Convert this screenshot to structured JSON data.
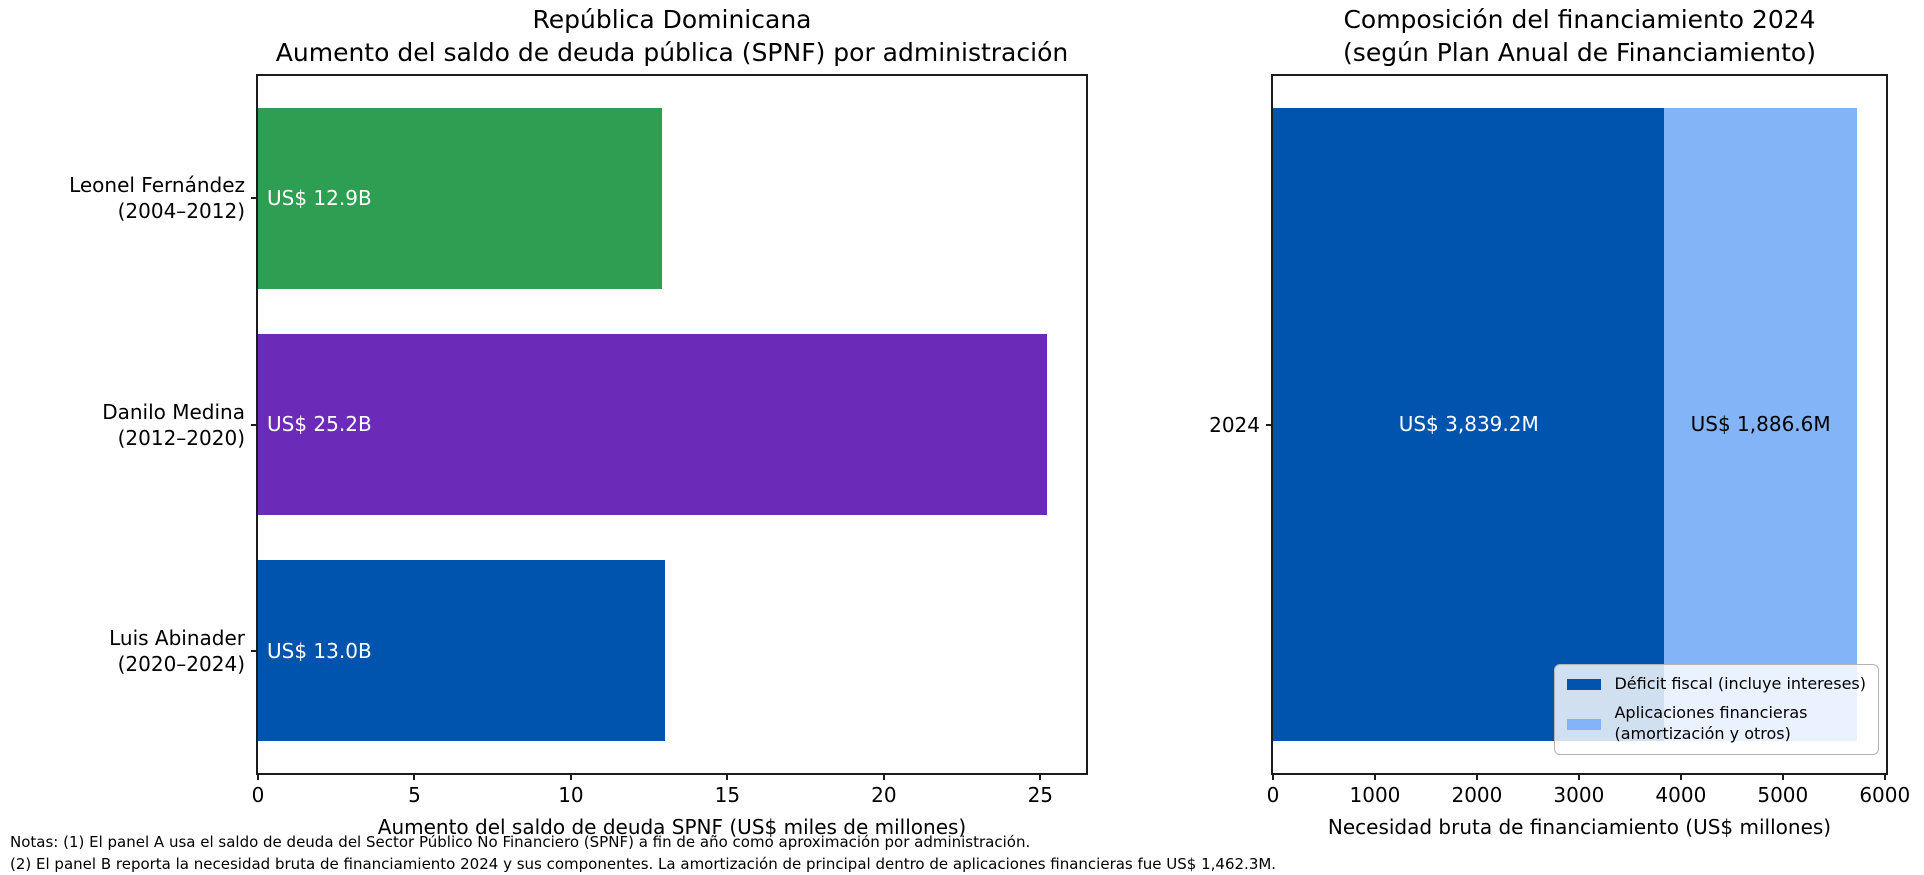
{
  "panel_a": {
    "title_line1": "República Dominicana",
    "title_line2": "Aumento del saldo de deuda pública (SPNF) por administración",
    "xlabel": "Aumento del saldo de deuda SPNF (US$ miles de millones)"
  },
  "panel_b": {
    "title_line1": "Composición del financiamiento 2024",
    "title_line2": "(según Plan Anual de Financiamiento)",
    "xlabel": "Necesidad bruta de financiamiento (US$ millones)",
    "ytick_label": "2024"
  },
  "legend": {
    "items": [
      {
        "label_line1": "Déficit fiscal (incluye intereses)",
        "label_line2": "",
        "color": "#0054ad"
      },
      {
        "label_line1": "Aplicaciones financieras",
        "label_line2": "(amortización y otros)",
        "color": "#84b4f8"
      }
    ]
  },
  "notes": {
    "line1": "Notas: (1) El panel A usa el saldo de deuda del Sector Público No Financiero (SPNF) a fin de año como aproximación por administración.",
    "line2": "(2) El panel B reporta la necesidad bruta de financiamiento 2024 y sus componentes. La amortización de principal dentro de aplicaciones financieras fue US$ 1,462.3M."
  },
  "chart_data": [
    {
      "type": "bar",
      "orientation": "horizontal",
      "title": "República Dominicana — Aumento del saldo de deuda pública (SPNF) por administración",
      "categories": [
        [
          "Leonel Fernández",
          "(2004–2012)"
        ],
        [
          "Danilo Medina",
          "(2012–2020)"
        ],
        [
          "Luis Abinader",
          "(2020–2024)"
        ]
      ],
      "category_ids": [
        "leonel-fernandez",
        "danilo-medina",
        "luis-abinader"
      ],
      "values": [
        12.9,
        25.2,
        13.0
      ],
      "value_labels": [
        "US$ 12.9B",
        "US$ 25.2B",
        "US$ 13.0B"
      ],
      "bar_colors": [
        "#2e9e53",
        "#6b2bb8",
        "#0054ad"
      ],
      "xlabel": "Aumento del saldo de deuda SPNF (US$ miles de millones)",
      "xticks": [
        0,
        5,
        10,
        15,
        20,
        25
      ],
      "xlim": [
        0,
        26.46
      ],
      "grid": false
    },
    {
      "type": "bar",
      "orientation": "horizontal",
      "stacked": true,
      "title": "Composición del financiamiento 2024 (según Plan Anual de Financiamiento)",
      "categories": [
        "2024"
      ],
      "series": [
        {
          "name": "Déficit fiscal (incluye intereses)",
          "values": [
            3839.2
          ],
          "color": "#0054ad",
          "value_label": "US$ 3,839.2M",
          "label_color": "#ffffff"
        },
        {
          "name": "Aplicaciones financieras (amortización y otros)",
          "values": [
            1886.6
          ],
          "color": "#84b4f8",
          "value_label": "US$ 1,886.6M",
          "label_color": "#000000"
        }
      ],
      "total": 5725.8,
      "xlabel": "Necesidad bruta de financiamiento (US$ millones)",
      "xticks": [
        0,
        1000,
        2000,
        3000,
        4000,
        5000,
        6000
      ],
      "xlim": [
        0,
        6012
      ],
      "legend_position": "lower right",
      "grid": false
    }
  ]
}
